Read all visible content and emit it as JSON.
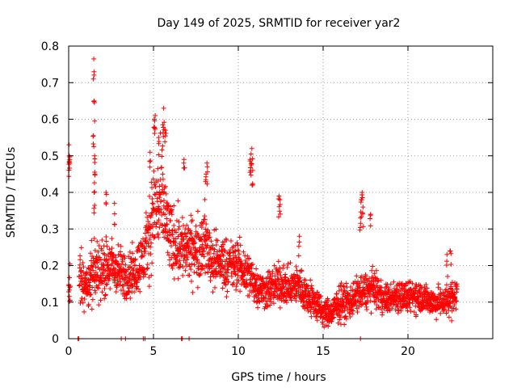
{
  "chart_data": {
    "type": "scatter",
    "title": "Day 149 of 2025, SRMTID for receiver yar2",
    "xlabel": "GPS time / hours",
    "ylabel": "SRMTID / TECUs",
    "xlim": [
      0,
      25
    ],
    "ylim": [
      0,
      0.8
    ],
    "x_ticks": [
      0,
      5,
      10,
      15,
      20
    ],
    "y_ticks": [
      0,
      0.1,
      0.2,
      0.3,
      0.4,
      0.5,
      0.6,
      0.7,
      0.8
    ],
    "x_tick_labels": [
      "0",
      "5",
      "10",
      "15",
      "20"
    ],
    "y_tick_labels": [
      "0",
      "0.1",
      "0.2",
      "0.3",
      "0.4",
      "0.5",
      "0.6",
      "0.7",
      "0.8"
    ],
    "grid": true,
    "marker": "+",
    "series_color": "#ff0000",
    "series": [
      {
        "name": "SRMTID",
        "envelope_hours": [
          0.0,
          0.6,
          1.0,
          1.5,
          2.0,
          2.5,
          3.0,
          3.5,
          4.0,
          4.5,
          5.0,
          5.5,
          6.0,
          6.5,
          7.0,
          7.5,
          8.0,
          8.5,
          9.0,
          9.5,
          10.0,
          10.5,
          11.0,
          11.5,
          12.0,
          12.5,
          13.0,
          13.5,
          14.0,
          14.5,
          15.0,
          15.5,
          16.0,
          16.5,
          17.0,
          17.5,
          18.0,
          18.5,
          19.0,
          19.5,
          20.0,
          20.5,
          21.0,
          21.5,
          22.0,
          22.5,
          22.9
        ],
        "envelope_center": [
          0.15,
          0.17,
          0.14,
          0.18,
          0.19,
          0.2,
          0.18,
          0.17,
          0.19,
          0.23,
          0.35,
          0.37,
          0.27,
          0.26,
          0.24,
          0.24,
          0.27,
          0.21,
          0.21,
          0.2,
          0.2,
          0.18,
          0.15,
          0.13,
          0.14,
          0.15,
          0.14,
          0.15,
          0.12,
          0.1,
          0.07,
          0.07,
          0.1,
          0.1,
          0.12,
          0.13,
          0.14,
          0.11,
          0.11,
          0.12,
          0.11,
          0.12,
          0.11,
          0.1,
          0.1,
          0.11,
          0.12
        ],
        "envelope_spread": [
          0.06,
          0.08,
          0.06,
          0.09,
          0.08,
          0.08,
          0.07,
          0.07,
          0.07,
          0.09,
          0.14,
          0.15,
          0.1,
          0.1,
          0.09,
          0.09,
          0.1,
          0.08,
          0.08,
          0.07,
          0.07,
          0.07,
          0.06,
          0.05,
          0.06,
          0.06,
          0.05,
          0.06,
          0.05,
          0.05,
          0.04,
          0.04,
          0.05,
          0.05,
          0.05,
          0.05,
          0.05,
          0.04,
          0.04,
          0.05,
          0.04,
          0.05,
          0.04,
          0.04,
          0.04,
          0.05,
          0.05
        ],
        "spikes": [
          {
            "x": 1.48,
            "y": 0.765
          },
          {
            "x": 1.5,
            "y": 0.65
          },
          {
            "x": 1.46,
            "y": 0.555
          },
          {
            "x": 1.53,
            "y": 0.5
          },
          {
            "x": 1.55,
            "y": 0.45
          },
          {
            "x": 1.5,
            "y": 0.4
          },
          {
            "x": 0.02,
            "y": 0.53
          },
          {
            "x": 0.05,
            "y": 0.48
          },
          {
            "x": 0.03,
            "y": 0.5
          },
          {
            "x": 5.1,
            "y": 0.61
          },
          {
            "x": 5.05,
            "y": 0.6
          },
          {
            "x": 5.6,
            "y": 0.63
          },
          {
            "x": 5.55,
            "y": 0.585
          },
          {
            "x": 5.7,
            "y": 0.57
          },
          {
            "x": 4.8,
            "y": 0.51
          },
          {
            "x": 5.3,
            "y": 0.55
          },
          {
            "x": 10.8,
            "y": 0.52
          },
          {
            "x": 10.75,
            "y": 0.505
          },
          {
            "x": 10.7,
            "y": 0.49
          },
          {
            "x": 10.85,
            "y": 0.46
          },
          {
            "x": 8.15,
            "y": 0.48
          },
          {
            "x": 8.1,
            "y": 0.45
          },
          {
            "x": 6.8,
            "y": 0.49
          },
          {
            "x": 12.4,
            "y": 0.39
          },
          {
            "x": 12.45,
            "y": 0.38
          },
          {
            "x": 17.3,
            "y": 0.4
          },
          {
            "x": 17.25,
            "y": 0.38
          },
          {
            "x": 17.35,
            "y": 0.36
          },
          {
            "x": 17.2,
            "y": 0.33
          },
          {
            "x": 17.8,
            "y": 0.34
          },
          {
            "x": 2.2,
            "y": 0.4
          },
          {
            "x": 2.7,
            "y": 0.37
          },
          {
            "x": 13.6,
            "y": 0.28
          },
          {
            "x": 22.3,
            "y": 0.23
          },
          {
            "x": 22.5,
            "y": 0.24
          }
        ],
        "zero_markers": [
          0.55,
          0.6,
          3.1,
          3.35,
          4.4,
          4.5,
          6.65,
          6.7,
          7.1,
          17.2
        ]
      }
    ]
  }
}
